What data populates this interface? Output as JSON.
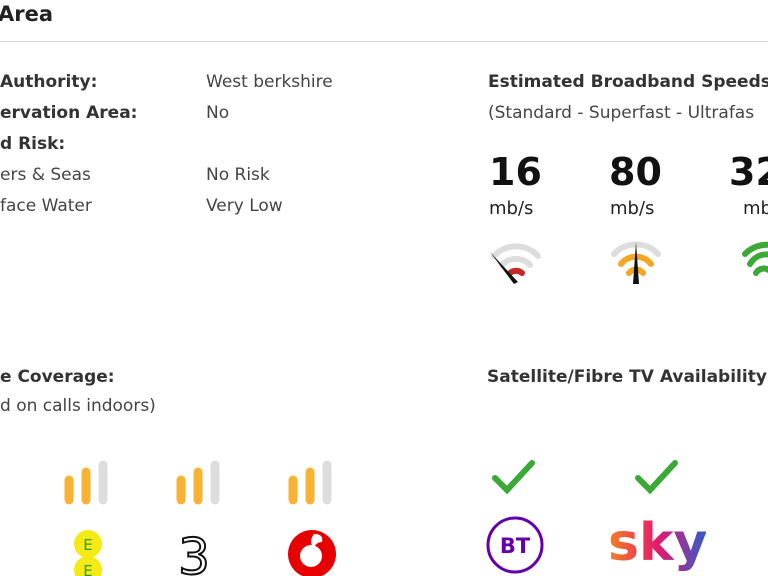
{
  "header": {
    "title": "Area"
  },
  "details": [
    {
      "label": "Authority:",
      "value": "West berkshire",
      "bold": true
    },
    {
      "label": "ervation Area:",
      "value": "No",
      "bold": true
    },
    {
      "label": "d Risk:",
      "value": "",
      "bold": true
    },
    {
      "label": "ers & Seas",
      "value": "No Risk",
      "bold": false
    },
    {
      "label": "face Water",
      "value": "Very Low",
      "bold": false
    }
  ],
  "broadband": {
    "title": "Estimated Broadband Speeds",
    "subtitle": "(Standard - Superfast - Ultrafas",
    "speeds": [
      {
        "value": "16",
        "unit": "mb/s",
        "color": "#c62828"
      },
      {
        "value": "80",
        "unit": "mb/s",
        "color": "#f4a623"
      },
      {
        "value": "32",
        "unit": "mb",
        "color": "#3aa935"
      }
    ]
  },
  "mobile": {
    "title": "e Coverage:",
    "subtitle": "d on calls indoors)",
    "operators": [
      {
        "name": "EE",
        "bars": 2
      },
      {
        "name": "Three",
        "bars": 2
      },
      {
        "name": "Vodafone",
        "bars": 2
      }
    ]
  },
  "tv": {
    "title": "Satellite/Fibre TV Availability:",
    "providers": [
      {
        "name": "BT",
        "available": true
      },
      {
        "name": "sky",
        "available": true
      }
    ]
  }
}
